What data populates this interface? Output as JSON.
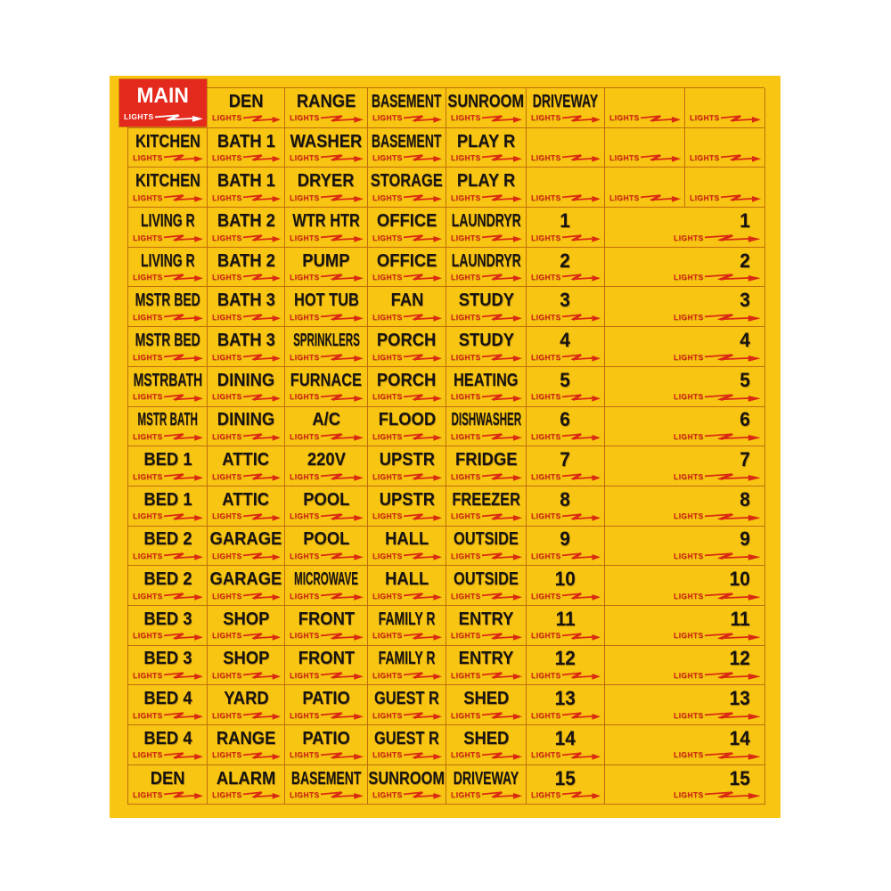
{
  "sheet": {
    "colors": {
      "sheet_bg": "#F9C513",
      "main_sticker_bg": "#E42A1C",
      "label_text": "#161310",
      "lights_red": "#D92A12",
      "grid_line": "#AA500C",
      "page_bg": "#FFFFFF"
    },
    "lights_label": "LIGHTS",
    "arrow_icon": "lightning-arrow-right",
    "rows": [
      {
        "cells": [
          {
            "label": "MAIN",
            "type": "main"
          },
          {
            "label": "DEN",
            "type": "normal"
          },
          {
            "label": "RANGE",
            "type": "normal"
          },
          {
            "label": "BASEMENT",
            "type": "normal"
          },
          {
            "label": "SUNROOM",
            "type": "normal"
          },
          {
            "label": "DRIVEWAY",
            "type": "normal"
          },
          {
            "label": "",
            "type": "normal"
          },
          {
            "label": "",
            "type": "normal"
          }
        ]
      },
      {
        "cells": [
          {
            "label": "KITCHEN",
            "type": "normal"
          },
          {
            "label": "BATH 1",
            "type": "normal"
          },
          {
            "label": "WASHER",
            "type": "normal"
          },
          {
            "label": "BASEMENT",
            "type": "normal"
          },
          {
            "label": "PLAY R",
            "type": "normal"
          },
          {
            "label": "",
            "type": "normal"
          },
          {
            "label": "",
            "type": "normal"
          },
          {
            "label": "",
            "type": "normal"
          }
        ]
      },
      {
        "cells": [
          {
            "label": "KITCHEN",
            "type": "normal"
          },
          {
            "label": "BATH 1",
            "type": "normal"
          },
          {
            "label": "DRYER",
            "type": "normal"
          },
          {
            "label": "STORAGE",
            "type": "normal"
          },
          {
            "label": "PLAY R",
            "type": "normal"
          },
          {
            "label": "",
            "type": "normal"
          },
          {
            "label": "",
            "type": "normal"
          },
          {
            "label": "",
            "type": "normal"
          }
        ]
      },
      {
        "cells": [
          {
            "label": "LIVING R",
            "type": "normal"
          },
          {
            "label": "BATH 2",
            "type": "normal"
          },
          {
            "label": "WTR HTR",
            "type": "normal"
          },
          {
            "label": "OFFICE",
            "type": "normal"
          },
          {
            "label": "LAUNDRYR",
            "type": "normal"
          },
          {
            "label": "1",
            "type": "number"
          },
          {
            "label": "1",
            "type": "wide"
          }
        ]
      },
      {
        "cells": [
          {
            "label": "LIVING R",
            "type": "normal"
          },
          {
            "label": "BATH 2",
            "type": "normal"
          },
          {
            "label": "PUMP",
            "type": "normal"
          },
          {
            "label": "OFFICE",
            "type": "normal"
          },
          {
            "label": "LAUNDRYR",
            "type": "normal"
          },
          {
            "label": "2",
            "type": "number"
          },
          {
            "label": "2",
            "type": "wide"
          }
        ]
      },
      {
        "cells": [
          {
            "label": "MSTR BED",
            "type": "normal"
          },
          {
            "label": "BATH 3",
            "type": "normal"
          },
          {
            "label": "HOT TUB",
            "type": "normal"
          },
          {
            "label": "FAN",
            "type": "normal"
          },
          {
            "label": "STUDY",
            "type": "normal"
          },
          {
            "label": "3",
            "type": "number"
          },
          {
            "label": "3",
            "type": "wide"
          }
        ]
      },
      {
        "cells": [
          {
            "label": "MSTR BED",
            "type": "normal"
          },
          {
            "label": "BATH 3",
            "type": "normal"
          },
          {
            "label": "SPRINKLERS",
            "type": "normal"
          },
          {
            "label": "PORCH",
            "type": "normal"
          },
          {
            "label": "STUDY",
            "type": "normal"
          },
          {
            "label": "4",
            "type": "number"
          },
          {
            "label": "4",
            "type": "wide"
          }
        ]
      },
      {
        "cells": [
          {
            "label": "MSTRBATH",
            "type": "normal"
          },
          {
            "label": "DINING",
            "type": "normal"
          },
          {
            "label": "FURNACE",
            "type": "normal"
          },
          {
            "label": "PORCH",
            "type": "normal"
          },
          {
            "label": "HEATING",
            "type": "normal"
          },
          {
            "label": "5",
            "type": "number"
          },
          {
            "label": "5",
            "type": "wide"
          }
        ]
      },
      {
        "cells": [
          {
            "label": "MSTR BATH",
            "type": "normal"
          },
          {
            "label": "DINING",
            "type": "normal"
          },
          {
            "label": "A/C",
            "type": "normal"
          },
          {
            "label": "FLOOD",
            "type": "normal"
          },
          {
            "label": "DISHWASHER",
            "type": "normal"
          },
          {
            "label": "6",
            "type": "number"
          },
          {
            "label": "6",
            "type": "wide"
          }
        ]
      },
      {
        "cells": [
          {
            "label": "BED 1",
            "type": "normal"
          },
          {
            "label": "ATTIC",
            "type": "normal"
          },
          {
            "label": "220V",
            "type": "normal"
          },
          {
            "label": "UPSTR",
            "type": "normal"
          },
          {
            "label": "FRIDGE",
            "type": "normal"
          },
          {
            "label": "7",
            "type": "number"
          },
          {
            "label": "7",
            "type": "wide"
          }
        ]
      },
      {
        "cells": [
          {
            "label": "BED 1",
            "type": "normal"
          },
          {
            "label": "ATTIC",
            "type": "normal"
          },
          {
            "label": "POOL",
            "type": "normal"
          },
          {
            "label": "UPSTR",
            "type": "normal"
          },
          {
            "label": "FREEZER",
            "type": "normal"
          },
          {
            "label": "8",
            "type": "number"
          },
          {
            "label": "8",
            "type": "wide"
          }
        ]
      },
      {
        "cells": [
          {
            "label": "BED 2",
            "type": "normal"
          },
          {
            "label": "GARAGE",
            "type": "normal"
          },
          {
            "label": "POOL",
            "type": "normal"
          },
          {
            "label": "HALL",
            "type": "normal"
          },
          {
            "label": "OUTSIDE",
            "type": "normal"
          },
          {
            "label": "9",
            "type": "number"
          },
          {
            "label": "9",
            "type": "wide"
          }
        ]
      },
      {
        "cells": [
          {
            "label": "BED 2",
            "type": "normal"
          },
          {
            "label": "GARAGE",
            "type": "normal"
          },
          {
            "label": "MICROWAVE",
            "type": "normal"
          },
          {
            "label": "HALL",
            "type": "normal"
          },
          {
            "label": "OUTSIDE",
            "type": "normal"
          },
          {
            "label": "10",
            "type": "number"
          },
          {
            "label": "10",
            "type": "wide"
          }
        ]
      },
      {
        "cells": [
          {
            "label": "BED 3",
            "type": "normal"
          },
          {
            "label": "SHOP",
            "type": "normal"
          },
          {
            "label": "FRONT",
            "type": "normal"
          },
          {
            "label": "FAMILY R",
            "type": "normal"
          },
          {
            "label": "ENTRY",
            "type": "normal"
          },
          {
            "label": "11",
            "type": "number"
          },
          {
            "label": "11",
            "type": "wide"
          }
        ]
      },
      {
        "cells": [
          {
            "label": "BED 3",
            "type": "normal"
          },
          {
            "label": "SHOP",
            "type": "normal"
          },
          {
            "label": "FRONT",
            "type": "normal"
          },
          {
            "label": "FAMILY R",
            "type": "normal"
          },
          {
            "label": "ENTRY",
            "type": "normal"
          },
          {
            "label": "12",
            "type": "number"
          },
          {
            "label": "12",
            "type": "wide"
          }
        ]
      },
      {
        "cells": [
          {
            "label": "BED 4",
            "type": "normal"
          },
          {
            "label": "YARD",
            "type": "normal"
          },
          {
            "label": "PATIO",
            "type": "normal"
          },
          {
            "label": "GUEST R",
            "type": "normal"
          },
          {
            "label": "SHED",
            "type": "normal"
          },
          {
            "label": "13",
            "type": "number"
          },
          {
            "label": "13",
            "type": "wide"
          }
        ]
      },
      {
        "cells": [
          {
            "label": "BED 4",
            "type": "normal"
          },
          {
            "label": "RANGE",
            "type": "normal"
          },
          {
            "label": "PATIO",
            "type": "normal"
          },
          {
            "label": "GUEST R",
            "type": "normal"
          },
          {
            "label": "SHED",
            "type": "normal"
          },
          {
            "label": "14",
            "type": "number"
          },
          {
            "label": "14",
            "type": "wide"
          }
        ]
      },
      {
        "cells": [
          {
            "label": "DEN",
            "type": "normal"
          },
          {
            "label": "ALARM",
            "type": "normal"
          },
          {
            "label": "BASEMENT",
            "type": "normal"
          },
          {
            "label": "SUNROOM",
            "type": "normal"
          },
          {
            "label": "DRIVEWAY",
            "type": "normal"
          },
          {
            "label": "15",
            "type": "number"
          },
          {
            "label": "15",
            "type": "wide"
          }
        ]
      }
    ]
  }
}
